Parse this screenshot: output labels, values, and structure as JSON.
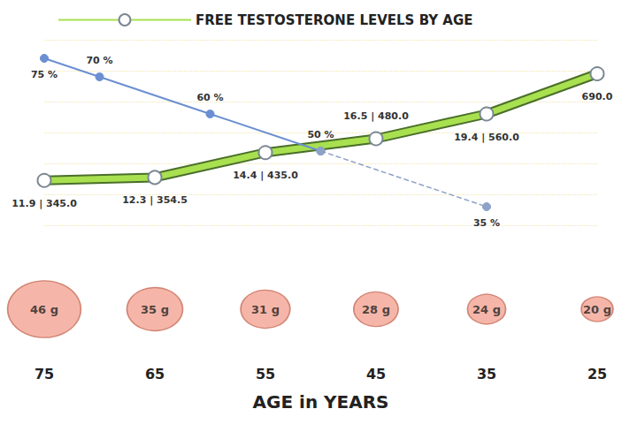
{
  "chart_data": [
    {
      "type": "line",
      "xlim": [
        25,
        75
      ],
      "ylim": [
        200,
        800
      ],
      "yticks": [
        200,
        300,
        400,
        500,
        600,
        700,
        800
      ],
      "y2lim": [
        30,
        80
      ],
      "grid": true,
      "legend": "top",
      "tick_labels": false,
      "series": [
        {
          "name": "FREE TESTOSTERONE LEVELS BY AGE",
          "x": [
            75,
            65,
            55,
            45,
            35,
            25
          ],
          "values": [
            345,
            354.5,
            435,
            480,
            560,
            690
          ],
          "value_labels": [
            "11.9 | 345.0",
            "12.3 | 354.5",
            "14.4 | 435.0",
            "16.5 | 480.0",
            "19.4 | 560.0",
            "690.0"
          ],
          "color": "#a8e050",
          "marker": "circle",
          "line_style": "solid",
          "data_labels": true
        },
        {
          "x": [
            75,
            70,
            60,
            50
          ],
          "values": [
            75,
            70,
            60,
            50
          ],
          "value_labels": [
            "75 %",
            "70 %",
            "60 %",
            "50 %"
          ],
          "color": "#6b8fd2",
          "axis": "y2",
          "marker": "circle",
          "line_style": "solid",
          "data_labels": true
        },
        {
          "x": [
            50,
            35
          ],
          "values": [
            50,
            35
          ],
          "value_labels": [
            null,
            "35 %"
          ],
          "color": "#8ea2c8",
          "axis": "y2",
          "marker": "circle",
          "line_style": "dashed",
          "data_labels": true
        }
      ]
    },
    {
      "type": "scatter",
      "x_label": "AGE in YEARS",
      "xlim": [
        25,
        75
      ],
      "xticks": [
        75,
        65,
        55,
        45,
        35,
        25
      ],
      "tick_labels": "x",
      "x": [
        75,
        65,
        55,
        45,
        35,
        25
      ],
      "values": [
        46,
        35,
        31,
        28,
        24,
        20
      ],
      "value_labels": [
        "46 g",
        "35 g",
        "31 g",
        "28 g",
        "24 g",
        "20 g"
      ],
      "color": "#f2a493",
      "data_labels": true
    }
  ]
}
